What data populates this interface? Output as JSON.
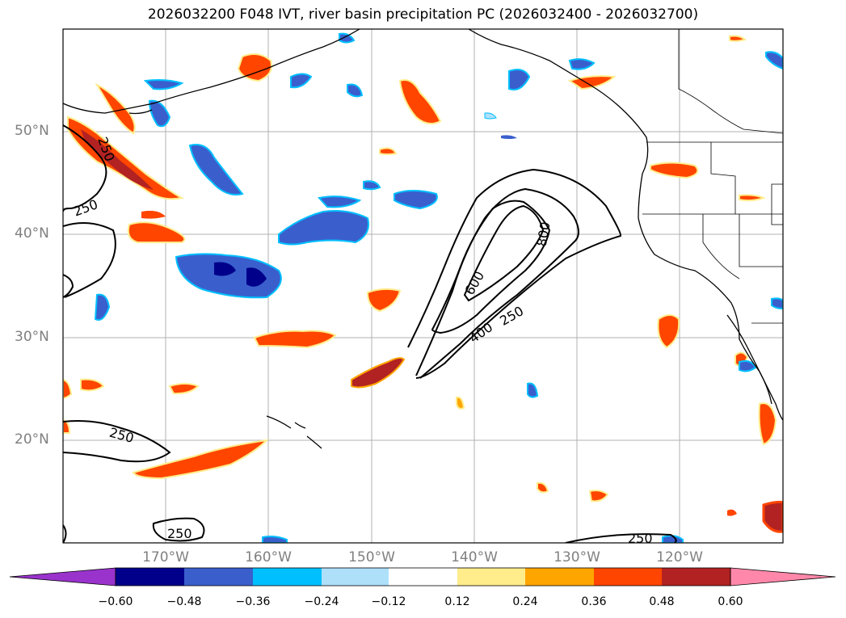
{
  "title": "2026032200 F048 IVT, river basin precipitation PC (2026032400 - 2026032700)",
  "map": {
    "region": "North Pacific / western North America",
    "lat_labels": [
      "50°N",
      "40°N",
      "30°N",
      "20°N"
    ],
    "lon_labels": [
      "170°W",
      "160°W",
      "150°W",
      "140°W",
      "130°W",
      "120°W"
    ],
    "lat_values": [
      50,
      40,
      30,
      20
    ],
    "lon_values": [
      -170,
      -160,
      -150,
      -140,
      -130,
      -120
    ],
    "extent": {
      "lon": [
        -180,
        -110
      ],
      "lat": [
        10,
        60
      ]
    },
    "gridlines": true,
    "contour_labels": [
      "250",
      "250",
      "250",
      "250",
      "250",
      "400",
      "600",
      "800"
    ]
  },
  "colorbar": {
    "ticks": [
      "−0.60",
      "−0.48",
      "−0.36",
      "−0.24",
      "−0.12",
      "0.12",
      "0.24",
      "0.36",
      "0.48",
      "0.60"
    ],
    "colors": [
      "#9933cc",
      "#00008b",
      "#3a5fcd",
      "#00bfff",
      "#aee0fa",
      "#ffffff",
      "#ffec8b",
      "#ffa500",
      "#ff4500",
      "#b22222",
      "#ff88aa"
    ],
    "extend": "both"
  },
  "colors": {
    "neg_strong": "#00008b",
    "neg": "#3a5fcd",
    "neg_light": "#00bfff",
    "pos_light": "#ffec8b",
    "pos": "#ffa500",
    "pos_strong": "#ff4500",
    "pos_darker": "#b22222"
  }
}
